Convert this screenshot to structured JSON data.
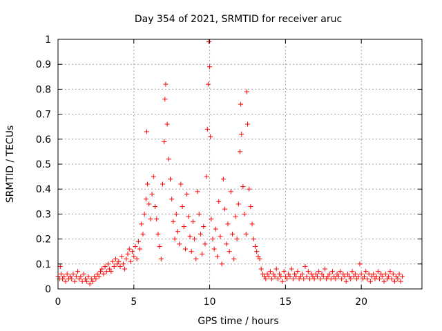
{
  "chart_data": {
    "type": "scatter",
    "title": "Day 354 of 2021, SRMTID for receiver aruc",
    "xlabel": "GPS time / hours",
    "ylabel": "SRMTID / TECUs",
    "xlim": [
      0,
      24
    ],
    "ylim": [
      0,
      1
    ],
    "xticks": [
      0,
      5,
      10,
      15,
      20
    ],
    "xtick_labels": [
      "0",
      "5",
      "10",
      "15",
      "20"
    ],
    "yticks": [
      0,
      0.1,
      0.2,
      0.3,
      0.4,
      0.5,
      0.6,
      0.7,
      0.8,
      0.9,
      1
    ],
    "ytick_labels": [
      "0",
      "0.1",
      "0.2",
      "0.3",
      "0.4",
      "0.5",
      "0.6",
      "0.7",
      "0.8",
      "0.9",
      "1"
    ],
    "grid": true,
    "marker": "+",
    "marker_color": "#ff0000",
    "series": [
      {
        "name": "SRMTID",
        "points": [
          [
            0.0,
            0.05
          ],
          [
            0.1,
            0.04
          ],
          [
            0.15,
            0.09
          ],
          [
            0.2,
            0.06
          ],
          [
            0.3,
            0.04
          ],
          [
            0.4,
            0.05
          ],
          [
            0.5,
            0.03
          ],
          [
            0.6,
            0.06
          ],
          [
            0.7,
            0.04
          ],
          [
            0.8,
            0.05
          ],
          [
            0.9,
            0.04
          ],
          [
            1.0,
            0.06
          ],
          [
            1.1,
            0.03
          ],
          [
            1.2,
            0.05
          ],
          [
            1.3,
            0.07
          ],
          [
            1.4,
            0.04
          ],
          [
            1.5,
            0.05
          ],
          [
            1.6,
            0.03
          ],
          [
            1.7,
            0.06
          ],
          [
            1.8,
            0.04
          ],
          [
            1.9,
            0.03
          ],
          [
            2.0,
            0.05
          ],
          [
            2.1,
            0.02
          ],
          [
            2.2,
            0.04
          ],
          [
            2.3,
            0.03
          ],
          [
            2.4,
            0.05
          ],
          [
            2.5,
            0.04
          ],
          [
            2.6,
            0.06
          ],
          [
            2.7,
            0.05
          ],
          [
            2.8,
            0.07
          ],
          [
            2.9,
            0.08
          ],
          [
            3.0,
            0.06
          ],
          [
            3.1,
            0.09
          ],
          [
            3.2,
            0.07
          ],
          [
            3.3,
            0.1
          ],
          [
            3.4,
            0.08
          ],
          [
            3.5,
            0.07
          ],
          [
            3.6,
            0.11
          ],
          [
            3.7,
            0.09
          ],
          [
            3.8,
            0.12
          ],
          [
            3.9,
            0.1
          ],
          [
            4.0,
            0.11
          ],
          [
            4.1,
            0.09
          ],
          [
            4.2,
            0.13
          ],
          [
            4.3,
            0.1
          ],
          [
            4.4,
            0.08
          ],
          [
            4.5,
            0.12
          ],
          [
            4.6,
            0.14
          ],
          [
            4.7,
            0.16
          ],
          [
            4.8,
            0.11
          ],
          [
            4.9,
            0.15
          ],
          [
            5.0,
            0.13
          ],
          [
            5.1,
            0.17
          ],
          [
            5.2,
            0.12
          ],
          [
            5.3,
            0.19
          ],
          [
            5.4,
            0.16
          ],
          [
            5.5,
            0.26
          ],
          [
            5.6,
            0.22
          ],
          [
            5.7,
            0.3
          ],
          [
            5.8,
            0.36
          ],
          [
            5.85,
            0.63
          ],
          [
            5.9,
            0.42
          ],
          [
            6.0,
            0.34
          ],
          [
            6.1,
            0.28
          ],
          [
            6.2,
            0.38
          ],
          [
            6.3,
            0.45
          ],
          [
            6.4,
            0.33
          ],
          [
            6.5,
            0.28
          ],
          [
            6.6,
            0.22
          ],
          [
            6.7,
            0.17
          ],
          [
            6.8,
            0.12
          ],
          [
            6.9,
            0.42
          ],
          [
            7.0,
            0.59
          ],
          [
            7.05,
            0.76
          ],
          [
            7.1,
            0.82
          ],
          [
            7.2,
            0.66
          ],
          [
            7.3,
            0.52
          ],
          [
            7.4,
            0.44
          ],
          [
            7.5,
            0.36
          ],
          [
            7.6,
            0.27
          ],
          [
            7.7,
            0.2
          ],
          [
            7.8,
            0.3
          ],
          [
            7.9,
            0.23
          ],
          [
            8.0,
            0.18
          ],
          [
            8.1,
            0.42
          ],
          [
            8.2,
            0.33
          ],
          [
            8.3,
            0.25
          ],
          [
            8.4,
            0.16
          ],
          [
            8.5,
            0.38
          ],
          [
            8.6,
            0.29
          ],
          [
            8.7,
            0.21
          ],
          [
            8.8,
            0.15
          ],
          [
            8.9,
            0.27
          ],
          [
            9.0,
            0.2
          ],
          [
            9.1,
            0.12
          ],
          [
            9.2,
            0.39
          ],
          [
            9.3,
            0.3
          ],
          [
            9.4,
            0.22
          ],
          [
            9.5,
            0.14
          ],
          [
            9.6,
            0.25
          ],
          [
            9.7,
            0.18
          ],
          [
            9.8,
            0.45
          ],
          [
            9.85,
            0.64
          ],
          [
            9.9,
            0.82
          ],
          [
            9.95,
            0.99
          ],
          [
            10.0,
            0.89
          ],
          [
            10.05,
            0.61
          ],
          [
            10.1,
            0.28
          ],
          [
            10.2,
            0.2
          ],
          [
            10.3,
            0.16
          ],
          [
            10.4,
            0.24
          ],
          [
            10.5,
            0.13
          ],
          [
            10.6,
            0.35
          ],
          [
            10.7,
            0.21
          ],
          [
            10.8,
            0.1
          ],
          [
            10.9,
            0.44
          ],
          [
            11.0,
            0.32
          ],
          [
            11.1,
            0.18
          ],
          [
            11.2,
            0.26
          ],
          [
            11.3,
            0.15
          ],
          [
            11.4,
            0.39
          ],
          [
            11.5,
            0.22
          ],
          [
            11.6,
            0.12
          ],
          [
            11.7,
            0.29
          ],
          [
            11.8,
            0.2
          ],
          [
            11.9,
            0.34
          ],
          [
            12.0,
            0.55
          ],
          [
            12.05,
            0.74
          ],
          [
            12.1,
            0.62
          ],
          [
            12.2,
            0.41
          ],
          [
            12.3,
            0.3
          ],
          [
            12.4,
            0.22
          ],
          [
            12.45,
            0.79
          ],
          [
            12.5,
            0.66
          ],
          [
            12.6,
            0.4
          ],
          [
            12.7,
            0.33
          ],
          [
            12.8,
            0.26
          ],
          [
            12.9,
            0.2
          ],
          [
            13.0,
            0.17
          ],
          [
            13.1,
            0.15
          ],
          [
            13.2,
            0.13
          ],
          [
            13.3,
            0.12
          ],
          [
            13.4,
            0.08
          ],
          [
            13.5,
            0.06
          ],
          [
            13.6,
            0.05
          ],
          [
            13.7,
            0.04
          ],
          [
            13.8,
            0.06
          ],
          [
            13.9,
            0.05
          ],
          [
            14.0,
            0.07
          ],
          [
            14.1,
            0.04
          ],
          [
            14.2,
            0.06
          ],
          [
            14.3,
            0.05
          ],
          [
            14.4,
            0.08
          ],
          [
            14.5,
            0.04
          ],
          [
            14.6,
            0.06
          ],
          [
            14.7,
            0.05
          ],
          [
            14.8,
            0.03
          ],
          [
            14.9,
            0.07
          ],
          [
            15.0,
            0.05
          ],
          [
            15.1,
            0.04
          ],
          [
            15.2,
            0.06
          ],
          [
            15.3,
            0.05
          ],
          [
            15.4,
            0.08
          ],
          [
            15.5,
            0.04
          ],
          [
            15.6,
            0.06
          ],
          [
            15.7,
            0.05
          ],
          [
            15.8,
            0.07
          ],
          [
            15.9,
            0.04
          ],
          [
            16.0,
            0.05
          ],
          [
            16.1,
            0.06
          ],
          [
            16.2,
            0.04
          ],
          [
            16.3,
            0.09
          ],
          [
            16.4,
            0.05
          ],
          [
            16.5,
            0.07
          ],
          [
            16.6,
            0.04
          ],
          [
            16.7,
            0.06
          ],
          [
            16.8,
            0.05
          ],
          [
            16.9,
            0.04
          ],
          [
            17.0,
            0.06
          ],
          [
            17.1,
            0.05
          ],
          [
            17.2,
            0.07
          ],
          [
            17.3,
            0.04
          ],
          [
            17.4,
            0.06
          ],
          [
            17.5,
            0.05
          ],
          [
            17.6,
            0.08
          ],
          [
            17.7,
            0.04
          ],
          [
            17.8,
            0.05
          ],
          [
            17.9,
            0.06
          ],
          [
            18.0,
            0.04
          ],
          [
            18.1,
            0.07
          ],
          [
            18.2,
            0.05
          ],
          [
            18.3,
            0.04
          ],
          [
            18.4,
            0.06
          ],
          [
            18.5,
            0.05
          ],
          [
            18.6,
            0.07
          ],
          [
            18.7,
            0.04
          ],
          [
            18.8,
            0.06
          ],
          [
            18.9,
            0.05
          ],
          [
            19.0,
            0.03
          ],
          [
            19.1,
            0.06
          ],
          [
            19.2,
            0.05
          ],
          [
            19.3,
            0.04
          ],
          [
            19.4,
            0.07
          ],
          [
            19.5,
            0.05
          ],
          [
            19.6,
            0.06
          ],
          [
            19.7,
            0.04
          ],
          [
            19.8,
            0.05
          ],
          [
            19.9,
            0.1
          ],
          [
            20.0,
            0.06
          ],
          [
            20.1,
            0.04
          ],
          [
            20.2,
            0.05
          ],
          [
            20.3,
            0.07
          ],
          [
            20.4,
            0.04
          ],
          [
            20.5,
            0.06
          ],
          [
            20.6,
            0.03
          ],
          [
            20.7,
            0.05
          ],
          [
            20.8,
            0.06
          ],
          [
            20.9,
            0.04
          ],
          [
            21.0,
            0.05
          ],
          [
            21.1,
            0.07
          ],
          [
            21.2,
            0.04
          ],
          [
            21.3,
            0.06
          ],
          [
            21.4,
            0.05
          ],
          [
            21.5,
            0.03
          ],
          [
            21.6,
            0.06
          ],
          [
            21.7,
            0.04
          ],
          [
            21.8,
            0.05
          ],
          [
            21.9,
            0.07
          ],
          [
            22.0,
            0.04
          ],
          [
            22.1,
            0.06
          ],
          [
            22.2,
            0.03
          ],
          [
            22.3,
            0.05
          ],
          [
            22.4,
            0.04
          ],
          [
            22.5,
            0.06
          ],
          [
            22.6,
            0.03
          ],
          [
            22.7,
            0.05
          ]
        ]
      }
    ]
  }
}
